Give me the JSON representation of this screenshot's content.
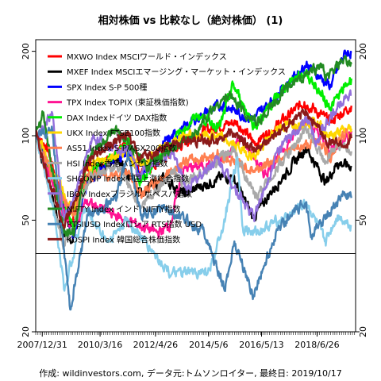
{
  "chart_data": {
    "type": "line",
    "title": "相対株価 vs 比較なし（絶対株価） (1)",
    "caption": "作成: wildinvestors.com, データ元:トムソンロイター, 最終日: 2019/10/17",
    "y_scale": "log",
    "ylim": [
      20,
      220
    ],
    "xlim": [
      "2007/10/01",
      "2019/12/15"
    ],
    "y_ticks": [
      20,
      50,
      100,
      200
    ],
    "x_ticks": [
      "2007/12/31",
      "2010/3/16",
      "2012/4/26",
      "2014/5/6",
      "2016/5/13",
      "2018/6/26"
    ],
    "reference_line": 38,
    "legend_position": "top-left",
    "series": [
      {
        "name": "MXWO Index MSCIワールド・インデックス",
        "color": "#ff0000",
        "points": [
          [
            "2007/10/01",
            100
          ],
          [
            "2008/03/01",
            92
          ],
          [
            "2008/10/01",
            60
          ],
          [
            "2009/03/01",
            48
          ],
          [
            "2009/09/01",
            78
          ],
          [
            "2010/05/01",
            80
          ],
          [
            "2011/04/01",
            92
          ],
          [
            "2011/10/01",
            74
          ],
          [
            "2012/09/01",
            84
          ],
          [
            "2013/12/01",
            102
          ],
          [
            "2014/09/01",
            108
          ],
          [
            "2015/06/01",
            112
          ],
          [
            "2016/02/01",
            94
          ],
          [
            "2016/12/01",
            108
          ],
          [
            "2018/01/01",
            132
          ],
          [
            "2018/12/24",
            112
          ],
          [
            "2019/10/17",
            128
          ]
        ]
      },
      {
        "name": "MXEF Index MSCIエマージング・マーケット・インデックス",
        "color": "#000000",
        "points": [
          [
            "2007/10/01",
            100
          ],
          [
            "2008/10/01",
            45
          ],
          [
            "2009/03/01",
            42
          ],
          [
            "2009/09/01",
            70
          ],
          [
            "2010/11/01",
            83
          ],
          [
            "2011/10/01",
            63
          ],
          [
            "2012/09/01",
            70
          ],
          [
            "2013/06/01",
            62
          ],
          [
            "2014/09/01",
            70
          ],
          [
            "2015/04/01",
            72
          ],
          [
            "2016/01/21",
            51
          ],
          [
            "2016/09/01",
            62
          ],
          [
            "2018/01/26",
            91
          ],
          [
            "2018/10/29",
            68
          ],
          [
            "2019/04/01",
            80
          ],
          [
            "2019/10/17",
            78
          ]
        ]
      },
      {
        "name": "SPX Index S-P 500種",
        "color": "#0000ff",
        "points": [
          [
            "2007/10/01",
            100
          ],
          [
            "2008/10/01",
            60
          ],
          [
            "2009/03/09",
            44
          ],
          [
            "2009/10/01",
            70
          ],
          [
            "2011/04/01",
            88
          ],
          [
            "2011/10/01",
            72
          ],
          [
            "2012/09/01",
            94
          ],
          [
            "2013/12/01",
            116
          ],
          [
            "2014/12/01",
            130
          ],
          [
            "2015/08/24",
            118
          ],
          [
            "2016/02/11",
            116
          ],
          [
            "2017/01/01",
            142
          ],
          [
            "2018/01/26",
            180
          ],
          [
            "2018/12/24",
            150
          ],
          [
            "2019/07/26",
            198
          ],
          [
            "2019/10/17",
            198
          ]
        ]
      },
      {
        "name": "TPX Index TOPIX (東証株価指数)",
        "color": "#ff1493",
        "points": [
          [
            "2007/10/01",
            100
          ],
          [
            "2008/10/01",
            55
          ],
          [
            "2009/03/01",
            47
          ],
          [
            "2009/09/01",
            58
          ],
          [
            "2011/03/15",
            50
          ],
          [
            "2012/06/01",
            45
          ],
          [
            "2012/11/15",
            48
          ],
          [
            "2013/05/22",
            76
          ],
          [
            "2014/10/01",
            80
          ],
          [
            "2015/08/10",
            98
          ],
          [
            "2016/06/24",
            73
          ],
          [
            "2017/06/01",
            95
          ],
          [
            "2018/01/23",
            116
          ],
          [
            "2018/12/25",
            88
          ],
          [
            "2019/10/17",
            104
          ]
        ]
      },
      {
        "name": "DAX Indexドイツ DAX指数",
        "color": "#00ee00",
        "points": [
          [
            "2007/10/01",
            100
          ],
          [
            "2008/10/01",
            60
          ],
          [
            "2009/03/06",
            47
          ],
          [
            "2009/10/01",
            72
          ],
          [
            "2011/05/01",
            95
          ],
          [
            "2011/09/12",
            68
          ],
          [
            "2012/09/01",
            90
          ],
          [
            "2013/12/01",
            118
          ],
          [
            "2014/10/16",
            108
          ],
          [
            "2015/04/10",
            152
          ],
          [
            "2016/02/11",
            108
          ],
          [
            "2017/06/01",
            156
          ],
          [
            "2018/01/23",
            168
          ],
          [
            "2018/12/27",
            126
          ],
          [
            "2019/10/17",
            160
          ]
        ]
      },
      {
        "name": "UKX Index FTSE100指数",
        "color": "#ffd700",
        "points": [
          [
            "2007/10/01",
            100
          ],
          [
            "2008/10/01",
            64
          ],
          [
            "2009/03/03",
            53
          ],
          [
            "2009/10/01",
            78
          ],
          [
            "2011/02/01",
            88
          ],
          [
            "2011/10/01",
            78
          ],
          [
            "2013/05/01",
            100
          ],
          [
            "2014/09/01",
            100
          ],
          [
            "2016/02/11",
            84
          ],
          [
            "2017/01/01",
            108
          ],
          [
            "2018/05/22",
            113
          ],
          [
            "2018/12/24",
            100
          ],
          [
            "2019/10/17",
            106
          ]
        ]
      },
      {
        "name": "AS51 Index S-P/ASX200指数",
        "color": "#ff7f50",
        "points": [
          [
            "2007/10/01",
            100
          ],
          [
            "2008/10/01",
            60
          ],
          [
            "2009/03/06",
            52
          ],
          [
            "2009/10/01",
            72
          ],
          [
            "2011/04/01",
            74
          ],
          [
            "2011/10/01",
            62
          ],
          [
            "2013/05/01",
            80
          ],
          [
            "2014/09/01",
            86
          ],
          [
            "2016/02/01",
            75
          ],
          [
            "2017/06/01",
            88
          ],
          [
            "2018/08/01",
            96
          ],
          [
            "2018/12/24",
            84
          ],
          [
            "2019/07/30",
            103
          ],
          [
            "2019/10/17",
            101
          ]
        ]
      },
      {
        "name": "HSI Index香港ハンセン指数",
        "color": "#a9a9a9",
        "points": [
          [
            "2007/10/01",
            100
          ],
          [
            "2008/10/27",
            40
          ],
          [
            "2009/03/01",
            46
          ],
          [
            "2009/11/01",
            72
          ],
          [
            "2010/11/01",
            78
          ],
          [
            "2011/10/04",
            56
          ],
          [
            "2013/01/01",
            75
          ],
          [
            "2013/06/01",
            67
          ],
          [
            "2015/04/28",
            90
          ],
          [
            "2016/02/12",
            60
          ],
          [
            "2018/01/26",
            105
          ],
          [
            "2018/10/29",
            80
          ],
          [
            "2019/04/01",
            95
          ],
          [
            "2019/10/17",
            88
          ]
        ]
      },
      {
        "name": "SHCOMP Index中国上海総合指数",
        "color": "#87ceeb",
        "points": [
          [
            "2007/10/16",
            100
          ],
          [
            "2008/06/01",
            56
          ],
          [
            "2008/11/04",
            28
          ],
          [
            "2009/08/04",
            55
          ],
          [
            "2010/07/01",
            42
          ],
          [
            "2011/04/01",
            50
          ],
          [
            "2012/12/04",
            32
          ],
          [
            "2014/06/01",
            33
          ],
          [
            "2014/12/31",
            52
          ],
          [
            "2015/06/12",
            84
          ],
          [
            "2015/08/26",
            47
          ],
          [
            "2016/01/27",
            45
          ],
          [
            "2017/06/01",
            52
          ],
          [
            "2018/01/29",
            58
          ],
          [
            "2018/10/18",
            42
          ],
          [
            "2019/04/08",
            52
          ],
          [
            "2019/10/17",
            48
          ]
        ]
      },
      {
        "name": "IBOV Indexブラジル ボベスパ指数",
        "color": "#9370db",
        "points": [
          [
            "2007/10/01",
            100
          ],
          [
            "2008/05/20",
            120
          ],
          [
            "2008/10/27",
            50
          ],
          [
            "2009/03/01",
            58
          ],
          [
            "2009/12/01",
            98
          ],
          [
            "2011/06/01",
            88
          ],
          [
            "2011/08/08",
            72
          ],
          [
            "2013/01/01",
            88
          ],
          [
            "2013/07/01",
            64
          ],
          [
            "2014/09/01",
            83
          ],
          [
            "2016/01/26",
            51
          ],
          [
            "2017/01/01",
            89
          ],
          [
            "2018/02/26",
            115
          ],
          [
            "2018/06/18",
            96
          ],
          [
            "2019/07/10",
            138
          ],
          [
            "2019/10/17",
            140
          ]
        ]
      },
      {
        "name": "NIFTY Index インド NIFTY指数",
        "color": "#228b22",
        "points": [
          [
            "2007/10/01",
            100
          ],
          [
            "2008/01/08",
            120
          ],
          [
            "2008/10/24",
            45
          ],
          [
            "2009/03/09",
            44
          ],
          [
            "2009/10/01",
            85
          ],
          [
            "2010/11/01",
            104
          ],
          [
            "2011/12/20",
            78
          ],
          [
            "2013/08/28",
            98
          ],
          [
            "2014/09/01",
            130
          ],
          [
            "2015/03/04",
            140
          ],
          [
            "2016/02/29",
            110
          ],
          [
            "2017/06/01",
            150
          ],
          [
            "2018/08/28",
            180
          ],
          [
            "2018/10/26",
            158
          ],
          [
            "2019/06/03",
            184
          ],
          [
            "2019/10/17",
            180
          ]
        ]
      },
      {
        "name": "RTSIUSD Indexロシア RTS指数 USD",
        "color": "#4682b4",
        "points": [
          [
            "2007/10/01",
            100
          ],
          [
            "2008/05/19",
            105
          ],
          [
            "2008/10/01",
            46
          ],
          [
            "2009/01/23",
            24
          ],
          [
            "2009/10/01",
            52
          ],
          [
            "2010/11/01",
            60
          ],
          [
            "2011/04/08",
            88
          ],
          [
            "2011/10/04",
            52
          ],
          [
            "2012/09/01",
            55
          ],
          [
            "2014/03/01",
            46
          ],
          [
            "2014/12/16",
            28
          ],
          [
            "2015/05/01",
            42
          ],
          [
            "2016/01/20",
            27
          ],
          [
            "2017/01/01",
            47
          ],
          [
            "2018/01/26",
            58
          ],
          [
            "2018/04/09",
            44
          ],
          [
            "2019/07/04",
            62
          ],
          [
            "2019/10/17",
            60
          ]
        ]
      },
      {
        "name": "KOSPI Index 韓国総合株価指数",
        "color": "#8b1a1a",
        "points": [
          [
            "2007/10/01",
            100
          ],
          [
            "2008/10/24",
            48
          ],
          [
            "2009/03/01",
            56
          ],
          [
            "2009/10/01",
            80
          ],
          [
            "2011/04/01",
            103
          ],
          [
            "2011/09/26",
            82
          ],
          [
            "2013/01/01",
            94
          ],
          [
            "2014/06/01",
            96
          ],
          [
            "2015/04/23",
            102
          ],
          [
            "2016/02/12",
            88
          ],
          [
            "2017/06/01",
            110
          ],
          [
            "2018/01/29",
            122
          ],
          [
            "2018/10/29",
            96
          ],
          [
            "2019/08/06",
            92
          ],
          [
            "2019/10/17",
            98
          ]
        ]
      }
    ]
  }
}
